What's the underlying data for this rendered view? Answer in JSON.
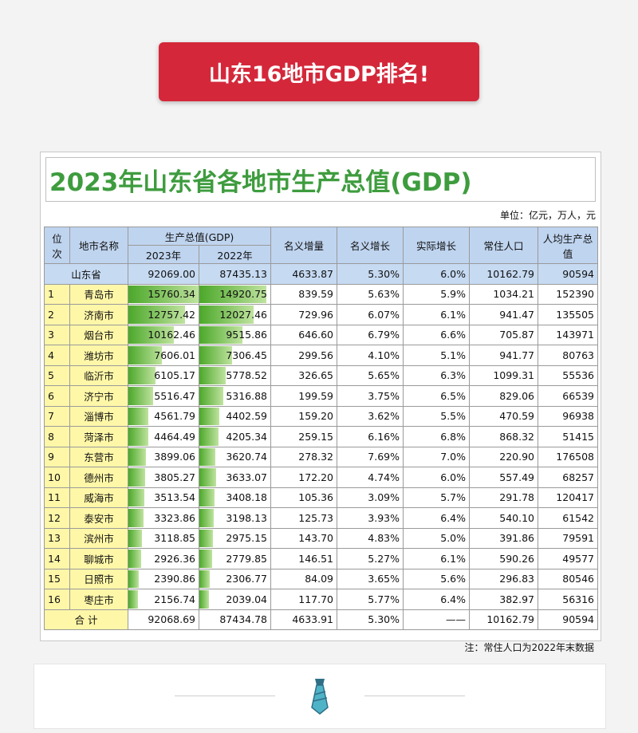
{
  "banner": {
    "title": "山东16地市GDP排名!"
  },
  "document": {
    "title": "2023年山东省各地市生产总值(GDP)",
    "unit": "单位：亿元，万人，元",
    "headers": {
      "rank": "位次",
      "city": "地市名称",
      "gdp": "生产总值(GDP)",
      "y2023": "2023年",
      "y2022": "2022年",
      "nominal_increase": "名义增量",
      "nominal_growth": "名义增长",
      "real_growth": "实际增长",
      "population": "常住人口",
      "per_capita": "人均生产总值"
    },
    "province": {
      "name": "山东省",
      "gdp2023": "92069.00",
      "gdp2022": "87435.13",
      "increase": "4633.87",
      "nominal": "5.30%",
      "real": "6.0%",
      "population": "10162.79",
      "per_capita": "90594"
    },
    "rows": [
      {
        "rank": "1",
        "city": "青岛市",
        "gdp2023": "15760.34",
        "gdp2022": "14920.75",
        "increase": "839.59",
        "nominal": "5.63%",
        "real": "5.9%",
        "population": "1034.21",
        "per_capita": "152390"
      },
      {
        "rank": "2",
        "city": "济南市",
        "gdp2023": "12757.42",
        "gdp2022": "12027.46",
        "increase": "729.96",
        "nominal": "6.07%",
        "real": "6.1%",
        "population": "941.47",
        "per_capita": "135505"
      },
      {
        "rank": "3",
        "city": "烟台市",
        "gdp2023": "10162.46",
        "gdp2022": "9515.86",
        "increase": "646.60",
        "nominal": "6.79%",
        "real": "6.6%",
        "population": "705.87",
        "per_capita": "143971"
      },
      {
        "rank": "4",
        "city": "潍坊市",
        "gdp2023": "7606.01",
        "gdp2022": "7306.45",
        "increase": "299.56",
        "nominal": "4.10%",
        "real": "5.1%",
        "population": "941.77",
        "per_capita": "80763"
      },
      {
        "rank": "5",
        "city": "临沂市",
        "gdp2023": "6105.17",
        "gdp2022": "5778.52",
        "increase": "326.65",
        "nominal": "5.65%",
        "real": "6.3%",
        "population": "1099.31",
        "per_capita": "55536"
      },
      {
        "rank": "6",
        "city": "济宁市",
        "gdp2023": "5516.47",
        "gdp2022": "5316.88",
        "increase": "199.59",
        "nominal": "3.75%",
        "real": "6.5%",
        "population": "829.06",
        "per_capita": "66539"
      },
      {
        "rank": "7",
        "city": "淄博市",
        "gdp2023": "4561.79",
        "gdp2022": "4402.59",
        "increase": "159.20",
        "nominal": "3.62%",
        "real": "5.5%",
        "population": "470.59",
        "per_capita": "96938"
      },
      {
        "rank": "8",
        "city": "菏泽市",
        "gdp2023": "4464.49",
        "gdp2022": "4205.34",
        "increase": "259.15",
        "nominal": "6.16%",
        "real": "6.8%",
        "population": "868.32",
        "per_capita": "51415"
      },
      {
        "rank": "9",
        "city": "东营市",
        "gdp2023": "3899.06",
        "gdp2022": "3620.74",
        "increase": "278.32",
        "nominal": "7.69%",
        "real": "7.0%",
        "population": "220.90",
        "per_capita": "176508"
      },
      {
        "rank": "10",
        "city": "德州市",
        "gdp2023": "3805.27",
        "gdp2022": "3633.07",
        "increase": "172.20",
        "nominal": "4.74%",
        "real": "6.0%",
        "population": "557.49",
        "per_capita": "68257"
      },
      {
        "rank": "11",
        "city": "威海市",
        "gdp2023": "3513.54",
        "gdp2022": "3408.18",
        "increase": "105.36",
        "nominal": "3.09%",
        "real": "5.7%",
        "population": "291.78",
        "per_capita": "120417"
      },
      {
        "rank": "12",
        "city": "泰安市",
        "gdp2023": "3323.86",
        "gdp2022": "3198.13",
        "increase": "125.73",
        "nominal": "3.93%",
        "real": "6.4%",
        "population": "540.10",
        "per_capita": "61542"
      },
      {
        "rank": "13",
        "city": "滨州市",
        "gdp2023": "3118.85",
        "gdp2022": "2975.15",
        "increase": "143.70",
        "nominal": "4.83%",
        "real": "5.0%",
        "population": "391.86",
        "per_capita": "79591"
      },
      {
        "rank": "14",
        "city": "聊城市",
        "gdp2023": "2926.36",
        "gdp2022": "2779.85",
        "increase": "146.51",
        "nominal": "5.27%",
        "real": "6.1%",
        "population": "590.26",
        "per_capita": "49577"
      },
      {
        "rank": "15",
        "city": "日照市",
        "gdp2023": "2390.86",
        "gdp2022": "2306.77",
        "increase": "84.09",
        "nominal": "3.65%",
        "real": "5.6%",
        "population": "296.83",
        "per_capita": "80546"
      },
      {
        "rank": "16",
        "city": "枣庄市",
        "gdp2023": "2156.74",
        "gdp2022": "2039.04",
        "increase": "117.70",
        "nominal": "5.77%",
        "real": "6.4%",
        "population": "382.97",
        "per_capita": "56316"
      }
    ],
    "total": {
      "label": "合  计",
      "gdp2023": "92068.69",
      "gdp2022": "87434.78",
      "increase": "4633.91",
      "nominal": "5.30%",
      "real": "——",
      "population": "10162.79",
      "per_capita": "90594"
    },
    "note": "注：常住人口为2022年末数据"
  },
  "colors": {
    "banner": "#d4283a",
    "title_green": "#3e9c3e",
    "header_blue": "#bfd4ef",
    "city_yellow": "#fff7a8",
    "bar_green": "#4ca82a"
  },
  "footer": {
    "icon": "tie-icon"
  }
}
